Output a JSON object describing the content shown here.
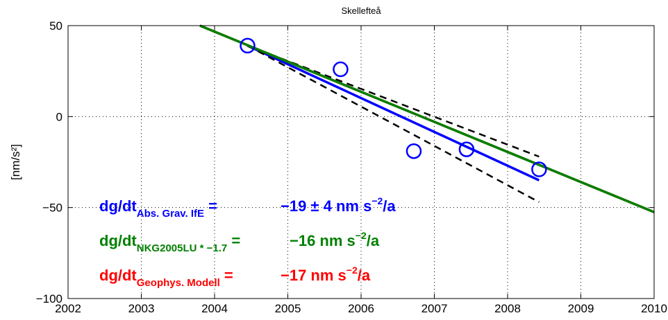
{
  "chart_data": {
    "type": "line",
    "title": "Skellefteå",
    "xlabel": "",
    "ylabel": "[nm/s²]",
    "xlim": [
      2002,
      2010
    ],
    "ylim": [
      -100,
      50
    ],
    "x_ticks": [
      "2002",
      "2003",
      "2004",
      "2005",
      "2006",
      "2007",
      "2008",
      "2009",
      "2010"
    ],
    "y_ticks": [
      "50",
      "0",
      "−50",
      "−100"
    ],
    "grid": true,
    "observations": {
      "x": [
        2004.45,
        2005.72,
        2006.72,
        2007.44,
        2008.43
      ],
      "y": [
        39,
        26,
        -19,
        -18,
        -29
      ],
      "color": "#0000ff",
      "marker": "circle"
    },
    "series": [
      {
        "x": [
          2004.45,
          2008.43
        ],
        "y": [
          39,
          -35
        ],
        "color": "#0000ff",
        "style": "solid"
      },
      {
        "x": [
          2004.45,
          2008.43
        ],
        "y": [
          39,
          -22
        ],
        "color": "#000000",
        "style": "dashed"
      },
      {
        "x": [
          2004.45,
          2008.43
        ],
        "y": [
          39,
          -47
        ],
        "color": "#000000",
        "style": "dashed"
      },
      {
        "x": [
          2003.8,
          2010
        ],
        "y": [
          50,
          -52.5
        ],
        "color": "#ff0000",
        "style": "solid"
      },
      {
        "x": [
          2003.8,
          2010
        ],
        "y": [
          50,
          -52.5
        ],
        "color": "#008000",
        "style": "solid"
      }
    ],
    "annotations": [
      {
        "prefix": "dg/dt",
        "sub": "Abs. Grav. IfE",
        "eq": " = ",
        "value": "−19 ± 4",
        "unit": "nm s",
        "exp": "−2",
        "tail": "/a",
        "color": "#0000ff"
      },
      {
        "prefix": "dg/dt",
        "sub": "NKG2005LU * −1.7",
        "eq": " = ",
        "value": "−16",
        "unit": "nm s",
        "exp": "−2",
        "tail": "/a",
        "color": "#008000"
      },
      {
        "prefix": "dg/dt",
        "sub": "Geophys. Modell",
        "eq": " = ",
        "value": "−17",
        "unit": "nm s",
        "exp": "−2",
        "tail": "/a",
        "color": "#ff0000"
      }
    ]
  }
}
